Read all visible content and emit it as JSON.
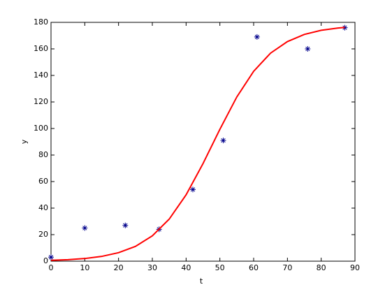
{
  "chart_data": {
    "type": "scatter",
    "xlabel": "t",
    "ylabel": "y",
    "xlim": [
      0,
      90
    ],
    "xticks": [
      0,
      10,
      20,
      30,
      40,
      50,
      60,
      70,
      80,
      90
    ],
    "ylim": [
      0,
      180
    ],
    "yticks": [
      0,
      20,
      40,
      60,
      80,
      100,
      120,
      140,
      160,
      180
    ],
    "series": [
      {
        "type": "scatter",
        "marker": "*",
        "color": "#00008b",
        "x": [
          0,
          10,
          22,
          32,
          42,
          51,
          61,
          76,
          87
        ],
        "values": [
          3,
          25,
          27,
          24,
          54,
          91,
          169,
          160,
          176
        ]
      },
      {
        "type": "line",
        "color": "#ff0000",
        "x": [
          0,
          5,
          10,
          15,
          20,
          25,
          30,
          35,
          40,
          45,
          50,
          55,
          60,
          65,
          70,
          75,
          80,
          85,
          87
        ],
        "values": [
          0.63,
          1.12,
          2.01,
          3.59,
          6.4,
          11.15,
          19.1,
          31.7,
          50.0,
          73.5,
          99.4,
          123.7,
          143.1,
          156.8,
          165.5,
          170.9,
          174.0,
          175.7,
          176.2
        ]
      }
    ]
  }
}
